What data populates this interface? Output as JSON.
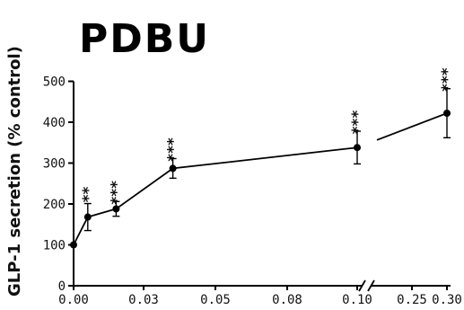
{
  "chart_data": {
    "type": "line",
    "title": "PDBU",
    "ylabel": "GLP-1 secretion (% control)",
    "xlabel": "",
    "ylim": [
      0,
      500
    ],
    "yticks": [
      0,
      100,
      200,
      300,
      400,
      500
    ],
    "xtick_labels": [
      "0.00",
      "0.03",
      "0.05",
      "0.08",
      "0.10",
      "0.25",
      "0.30"
    ],
    "x_axis_break": true,
    "series": [
      {
        "points": [
          {
            "x": 0.0,
            "y": 100,
            "err": 0,
            "sig": ""
          },
          {
            "x": 0.005,
            "y": 168,
            "err": 33,
            "sig": "**"
          },
          {
            "x": 0.015,
            "y": 188,
            "err": 18,
            "sig": "***"
          },
          {
            "x": 0.035,
            "y": 287,
            "err": 24,
            "sig": "***"
          },
          {
            "x": 0.1,
            "y": 338,
            "err": 40,
            "sig": "***"
          },
          {
            "x": 0.3,
            "y": 422,
            "err": 60,
            "sig": "***"
          }
        ]
      }
    ]
  }
}
